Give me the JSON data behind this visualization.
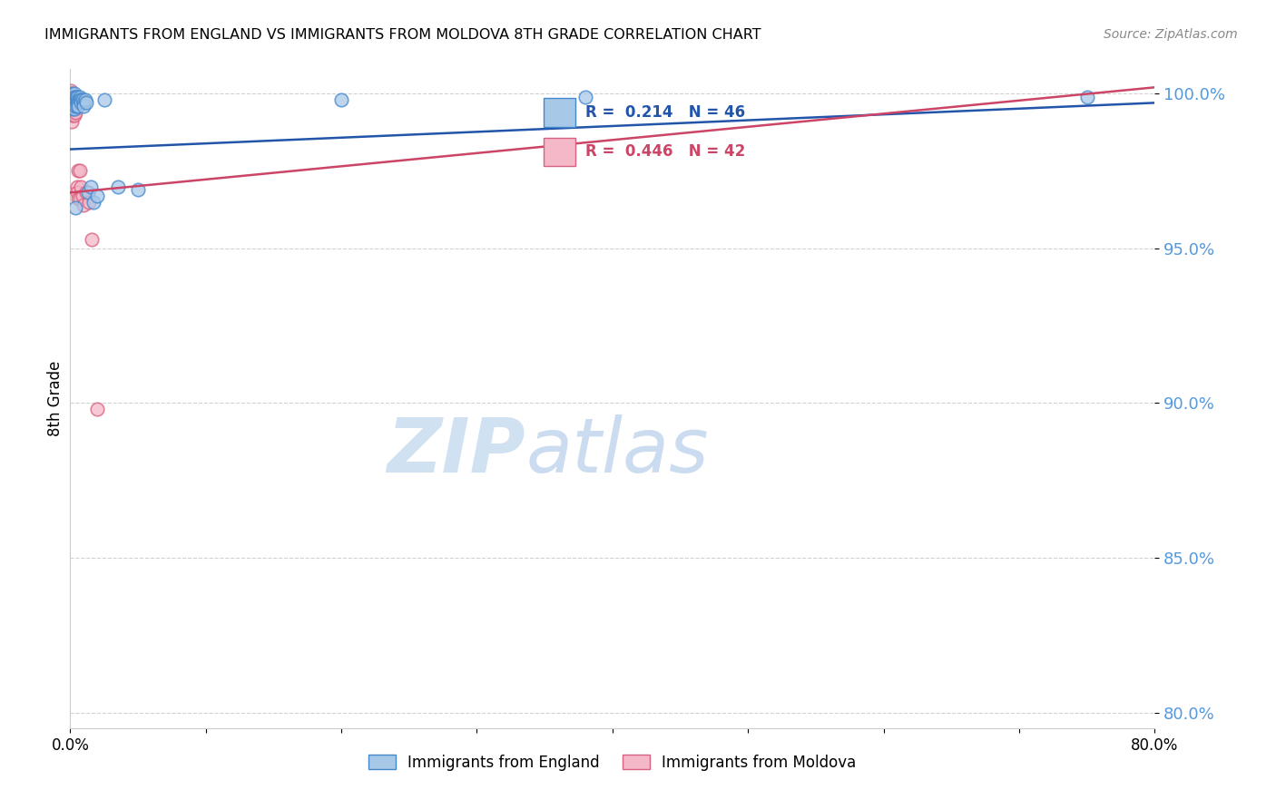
{
  "title": "IMMIGRANTS FROM ENGLAND VS IMMIGRANTS FROM MOLDOVA 8TH GRADE CORRELATION CHART",
  "source": "Source: ZipAtlas.com",
  "ylabel": "8th Grade",
  "watermark_zip": "ZIP",
  "watermark_atlas": "atlas",
  "R_england": 0.214,
  "N_england": 46,
  "R_moldova": 0.446,
  "N_moldova": 42,
  "england_face_color": "#a8c8e8",
  "england_edge_color": "#4488cc",
  "moldova_face_color": "#f4b8c8",
  "moldova_edge_color": "#d86080",
  "england_line_color": "#2255aa",
  "moldova_line_color": "#cc4466",
  "ytick_color": "#5599dd",
  "yticks": [
    0.8,
    0.85,
    0.9,
    0.95,
    1.0
  ],
  "ytick_labels": [
    "80.0%",
    "85.0%",
    "90.0%",
    "95.0%",
    "100.0%"
  ],
  "xmin": 0.0,
  "xmax": 0.8,
  "ymin": 0.795,
  "ymax": 1.008,
  "eng_x": [
    0.001,
    0.001,
    0.001,
    0.002,
    0.002,
    0.002,
    0.002,
    0.002,
    0.003,
    0.003,
    0.003,
    0.003,
    0.003,
    0.003,
    0.004,
    0.004,
    0.004,
    0.004,
    0.005,
    0.005,
    0.005,
    0.005,
    0.005,
    0.006,
    0.006,
    0.006,
    0.007,
    0.007,
    0.008,
    0.008,
    0.009,
    0.01,
    0.01,
    0.011,
    0.012,
    0.013,
    0.015,
    0.017,
    0.02,
    0.025,
    0.035,
    0.05,
    0.2,
    0.38,
    0.75,
    0.004
  ],
  "eng_y": [
    1.0,
    0.999,
    0.998,
    0.999,
    0.998,
    0.997,
    0.996,
    0.995,
    1.0,
    0.999,
    0.998,
    0.997,
    0.996,
    0.995,
    0.999,
    0.998,
    0.997,
    0.996,
    0.999,
    0.998,
    0.997,
    0.996,
    0.999,
    0.998,
    0.997,
    0.996,
    0.999,
    0.998,
    0.998,
    0.997,
    0.998,
    0.997,
    0.996,
    0.998,
    0.997,
    0.968,
    0.97,
    0.965,
    0.967,
    0.998,
    0.97,
    0.969,
    0.998,
    0.999,
    0.999,
    0.963
  ],
  "mol_x": [
    0.0005,
    0.0005,
    0.001,
    0.001,
    0.001,
    0.001,
    0.001,
    0.001,
    0.001,
    0.001,
    0.002,
    0.002,
    0.002,
    0.002,
    0.002,
    0.002,
    0.003,
    0.003,
    0.003,
    0.003,
    0.003,
    0.003,
    0.004,
    0.004,
    0.004,
    0.004,
    0.004,
    0.005,
    0.005,
    0.005,
    0.005,
    0.006,
    0.006,
    0.007,
    0.007,
    0.008,
    0.009,
    0.01,
    0.012,
    0.014,
    0.016,
    0.02
  ],
  "mol_y": [
    1.001,
    0.999,
    1.0,
    0.999,
    0.998,
    0.997,
    0.996,
    0.994,
    0.993,
    0.991,
    0.999,
    0.998,
    0.997,
    0.996,
    0.995,
    0.993,
    0.998,
    0.997,
    0.996,
    0.995,
    0.994,
    0.993,
    0.998,
    0.997,
    0.996,
    0.995,
    0.994,
    0.997,
    0.996,
    0.97,
    0.968,
    0.975,
    0.966,
    0.975,
    0.966,
    0.97,
    0.967,
    0.964,
    0.968,
    0.965,
    0.953,
    0.898
  ],
  "eng_trend_x0": 0.0,
  "eng_trend_x1": 0.8,
  "eng_trend_y0": 0.982,
  "eng_trend_y1": 0.997,
  "mol_trend_x0": 0.0,
  "mol_trend_x1": 0.8,
  "mol_trend_y0": 0.968,
  "mol_trend_y1": 1.002
}
